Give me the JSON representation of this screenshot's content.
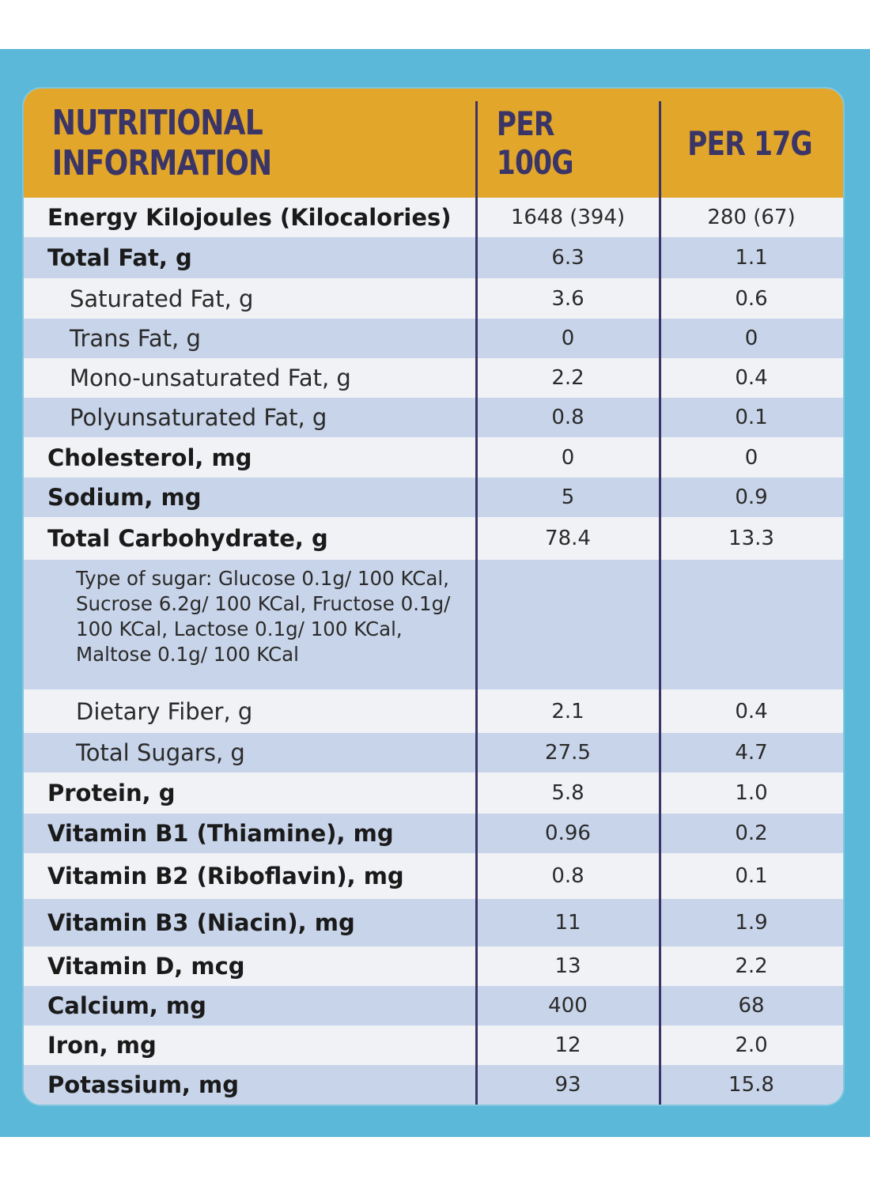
{
  "header": {
    "title": "NUTRITIONAL INFORMATION",
    "per100": "PER 100G",
    "per17": "PER 17G"
  },
  "colors": {
    "header_bg": "#e2a62a",
    "header_text": "#3a3566",
    "row_light": "#f1f2f6",
    "row_blue": "#c8d4e9",
    "background": "#5cb8d8"
  },
  "rows": [
    {
      "name": "Energy Kilojoules (Kilocalories)",
      "v1": "1648 (394)",
      "v2": "280 (67)"
    },
    {
      "name": "Total Fat, g",
      "v1": "6.3",
      "v2": "1.1"
    },
    {
      "name": "Saturated Fat, g",
      "v1": "3.6",
      "v2": "0.6"
    },
    {
      "name": "Trans Fat, g",
      "v1": "0",
      "v2": "0"
    },
    {
      "name": "Mono-unsaturated Fat, g",
      "v1": "2.2",
      "v2": "0.4"
    },
    {
      "name": "Polyunsaturated Fat, g",
      "v1": "0.8",
      "v2": "0.1"
    },
    {
      "name": "Cholesterol, mg",
      "v1": "0",
      "v2": "0"
    },
    {
      "name": "Sodium, mg",
      "v1": "5",
      "v2": "0.9"
    },
    {
      "name": "Total Carbohydrate, g",
      "v1": "78.4",
      "v2": "13.3"
    },
    {
      "name": "Type of sugar: Glucose 0.1g/ 100 KCal, Sucrose 6.2g/ 100 KCal, Fructose 0.1g/ 100 KCal, Lactose 0.1g/ 100 KCal, Maltose 0.1g/ 100 KCal",
      "v1": "",
      "v2": ""
    },
    {
      "name": "Dietary Fiber, g",
      "v1": "2.1",
      "v2": "0.4"
    },
    {
      "name": "Total Sugars, g",
      "v1": "27.5",
      "v2": "4.7"
    },
    {
      "name": "Protein, g",
      "v1": "5.8",
      "v2": "1.0"
    },
    {
      "name": "Vitamin B1 (Thiamine), mg",
      "v1": "0.96",
      "v2": "0.2"
    },
    {
      "name": "Vitamin B2 (Riboflavin), mg",
      "v1": "0.8",
      "v2": "0.1"
    },
    {
      "name": "Vitamin B3 (Niacin), mg",
      "v1": "11",
      "v2": "1.9"
    },
    {
      "name": "Vitamin D, mcg",
      "v1": "13",
      "v2": "2.2"
    },
    {
      "name": "Calcium, mg",
      "v1": "400",
      "v2": "68"
    },
    {
      "name": "Iron, mg",
      "v1": "12",
      "v2": "2.0"
    },
    {
      "name": "Potassium, mg",
      "v1": "93",
      "v2": "15.8"
    }
  ]
}
